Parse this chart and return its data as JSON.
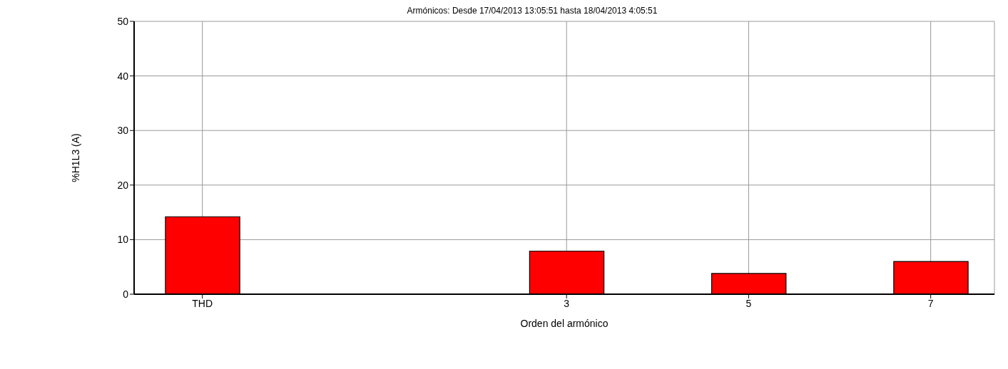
{
  "chart_data": {
    "type": "bar",
    "title": "Armónicos: Desde 17/04/2013 13:05:51 hasta 18/04/2013 4:05:51",
    "xlabel": "Orden del armónico",
    "ylabel": "%H1L3 (A)",
    "categories": [
      "THD",
      null,
      null,
      null,
      "3",
      null,
      "5",
      null,
      "7"
    ],
    "values": [
      14.2,
      null,
      null,
      null,
      7.9,
      null,
      3.8,
      null,
      6.0
    ],
    "color": "#ff0000",
    "ylim": [
      0,
      50
    ],
    "yticks": [
      0,
      10,
      20,
      30,
      40,
      50
    ],
    "grid": true
  }
}
